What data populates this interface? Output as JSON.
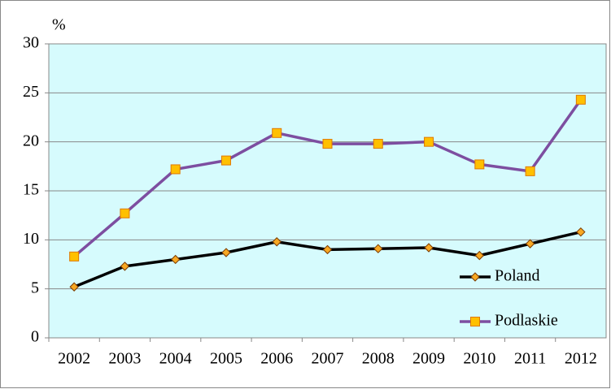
{
  "chart_data": {
    "type": "line",
    "y_label": "%",
    "categories": [
      "2002",
      "2003",
      "2004",
      "2005",
      "2006",
      "2007",
      "2008",
      "2009",
      "2010",
      "2011",
      "2012"
    ],
    "series": [
      {
        "name": "Poland",
        "color": "#000000",
        "marker": "diamond",
        "marker_color": "#f7a823",
        "values": [
          5.2,
          7.3,
          8.0,
          8.7,
          9.8,
          9.0,
          9.1,
          9.2,
          8.4,
          9.6,
          10.8
        ]
      },
      {
        "name": "Podlaskie",
        "color": "#7d4ea0",
        "marker": "square",
        "marker_color": "#ffc000",
        "values": [
          8.3,
          12.7,
          17.2,
          18.1,
          20.9,
          19.8,
          19.8,
          20.0,
          17.7,
          17.0,
          24.3
        ]
      }
    ],
    "ylim": [
      0,
      30
    ],
    "yticks": [
      0,
      5,
      10,
      15,
      20,
      25,
      30
    ],
    "grid": true,
    "legend": "lower right",
    "plot_background": "#d6fbfd"
  }
}
